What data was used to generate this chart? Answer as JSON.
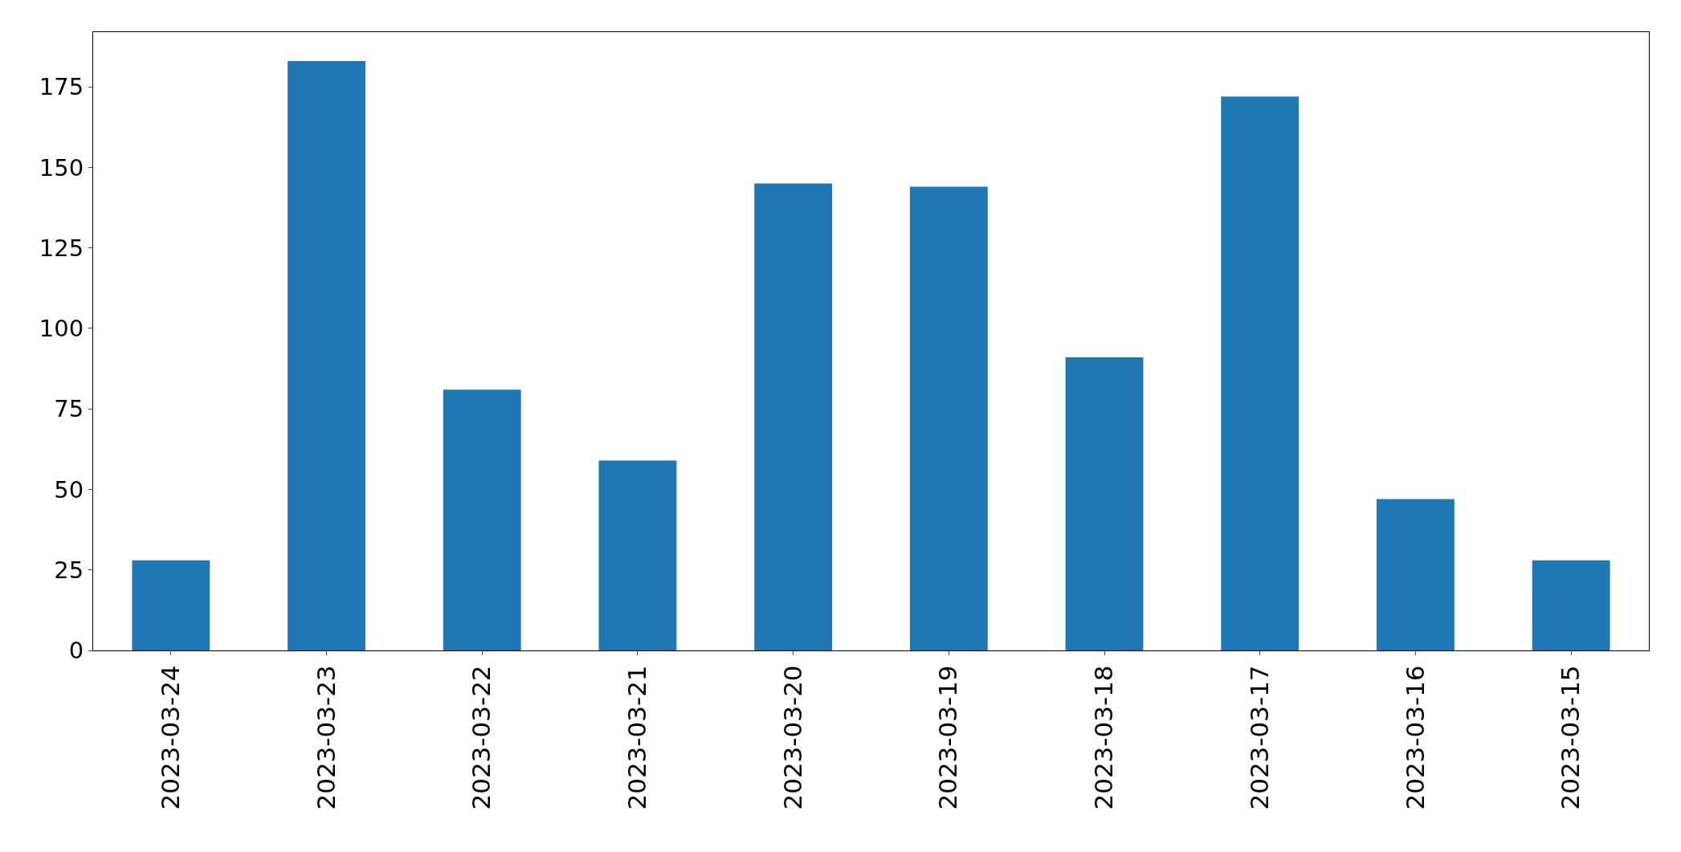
{
  "chart_data": {
    "type": "bar",
    "categories": [
      "2023-03-24",
      "2023-03-23",
      "2023-03-22",
      "2023-03-21",
      "2023-03-20",
      "2023-03-19",
      "2023-03-18",
      "2023-03-17",
      "2023-03-16",
      "2023-03-15"
    ],
    "values": [
      28,
      183,
      81,
      59,
      145,
      144,
      91,
      172,
      47,
      28
    ],
    "color": "#1f77b4",
    "ylim": [
      0,
      192
    ],
    "yticks": [
      0,
      25,
      50,
      75,
      100,
      125,
      150,
      175
    ]
  }
}
